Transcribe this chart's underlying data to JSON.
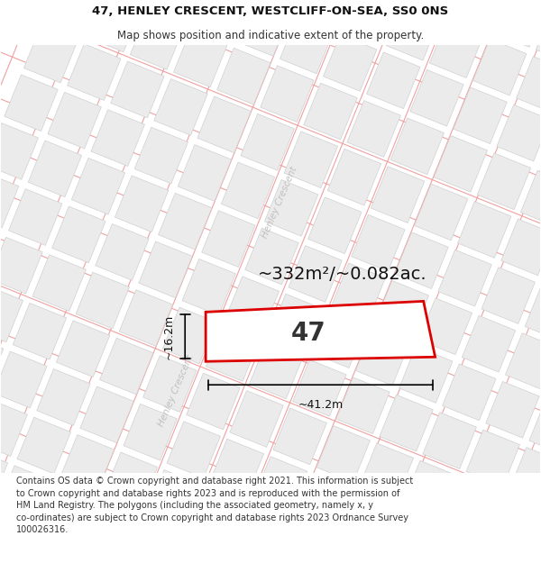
{
  "title_line1": "47, HENLEY CRESCENT, WESTCLIFF-ON-SEA, SS0 0NS",
  "title_line2": "Map shows position and indicative extent of the property.",
  "footer_lines": [
    "Contains OS data © Crown copyright and database right 2021. This information is subject",
    "to Crown copyright and database rights 2023 and is reproduced with the permission of",
    "HM Land Registry. The polygons (including the associated geometry, namely x, y",
    "co-ordinates) are subject to Crown copyright and database rights 2023 Ordnance Survey",
    "100026316."
  ],
  "area_label": "~332m²/~0.082ac.",
  "number_label": "47",
  "width_label": "~41.2m",
  "height_label": "~16.2m",
  "bg_color": "#ffffff",
  "map_bg": "#ffffff",
  "road_line_color": "#f0a0a0",
  "road_line_color2": "#f5b5b5",
  "building_fill": "#ebebeb",
  "building_edge": "#d0d0d0",
  "highlight_color": "#dd0000",
  "street_text_color": "#c0c0c0",
  "title_fontsize": 9.5,
  "subtitle_fontsize": 8.5,
  "footer_fontsize": 7.0,
  "area_fontsize": 14,
  "number_fontsize": 20,
  "meas_fontsize": 9
}
